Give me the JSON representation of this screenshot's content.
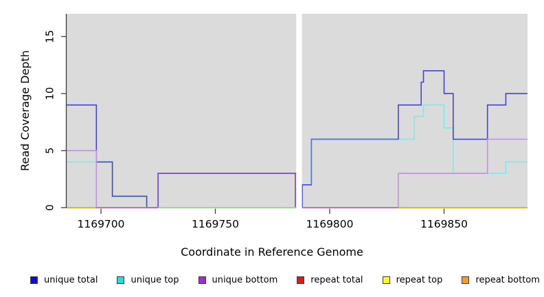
{
  "chart_data": {
    "type": "line",
    "subtype": "step-coverage",
    "title": "",
    "xlabel": "Coordinate in Reference Genome",
    "ylabel": "Read Coverage Depth",
    "x_domain": [
      1169685,
      1169886.5
    ],
    "y_domain": [
      0,
      17
    ],
    "x_ticks": [
      1169700,
      1169750,
      1169800,
      1169850
    ],
    "y_ticks": [
      0,
      5,
      10,
      15
    ],
    "grid": false,
    "plot_bg": "#DBDBDB",
    "axis_color": "#3c3c3c",
    "no_data_gap": {
      "from": 1169785.4,
      "to": 1169787.9
    },
    "draw_order": [
      3,
      4,
      5,
      1,
      0,
      2
    ],
    "series": [
      {
        "name": "unique total",
        "line_color": "#4343D8",
        "swatch": "#0A0AEF",
        "steps": [
          [
            1169685,
            9
          ],
          [
            1169698,
            4
          ],
          [
            1169705,
            1
          ],
          [
            1169720,
            0
          ],
          [
            1169725,
            3
          ],
          [
            1169786,
            0
          ],
          [
            1169788,
            2
          ],
          [
            1169792,
            6
          ],
          [
            1169830,
            9
          ],
          [
            1169840,
            11
          ],
          [
            1169841,
            12
          ],
          [
            1169850,
            10
          ],
          [
            1169854,
            6
          ],
          [
            1169869,
            9
          ],
          [
            1169877,
            10
          ]
        ]
      },
      {
        "name": "unique top",
        "line_color": "#80E8E8",
        "swatch": "#06E9E9",
        "steps": [
          [
            1169685,
            4
          ],
          [
            1169705,
            1
          ],
          [
            1169720,
            0
          ],
          [
            1169788,
            2
          ],
          [
            1169792,
            6
          ],
          [
            1169837,
            8
          ],
          [
            1169841,
            9
          ],
          [
            1169850,
            7
          ],
          [
            1169854,
            3
          ],
          [
            1169877,
            4
          ]
        ]
      },
      {
        "name": "unique bottom",
        "line_color": "#C08FE5",
        "swatch": "#9C2CDE",
        "steps": [
          [
            1169685,
            5
          ],
          [
            1169698,
            0
          ],
          [
            1169725,
            3
          ],
          [
            1169785,
            0
          ],
          [
            1169830,
            3
          ],
          [
            1169869,
            6
          ]
        ]
      },
      {
        "name": "repeat total",
        "line_color": "#D55F90",
        "swatch": "#EC1313",
        "steps": [
          [
            1169685,
            0
          ]
        ]
      },
      {
        "name": "repeat top",
        "line_color": "#EFEF30",
        "swatch": "#FBFB20",
        "steps": [
          [
            1169685,
            0
          ]
        ]
      },
      {
        "name": "repeat bottom",
        "line_color": "#FFA030",
        "swatch": "#FC9E13",
        "steps": [
          [
            1169685,
            0
          ]
        ]
      }
    ],
    "zero_line_segments": [
      {
        "from": 1169685,
        "to": 1169698,
        "color": "#FFA030"
      },
      {
        "from": 1169698,
        "to": 1169725,
        "color": "#D55F90"
      },
      {
        "from": 1169725,
        "to": 1169785.4,
        "color": "#9ED69B"
      },
      {
        "from": 1169788,
        "to": 1169830,
        "color": "#D55F90"
      },
      {
        "from": 1169830,
        "to": 1169886.5,
        "color": "#FFA030"
      }
    ],
    "overlap_segments": [
      {
        "from": 1169725,
        "to": 1169785,
        "value": 3,
        "color": "#6F4BE0",
        "drop_left": 0,
        "drop_right": 0
      },
      {
        "from": 1169792,
        "to": 1169830,
        "value": 6,
        "color": "#4E74E5",
        "drop_left": 2,
        "drop_right": null
      }
    ],
    "legend": {
      "position": "bottom",
      "items": [
        {
          "label": "unique total",
          "swatch": "#0A0AEF"
        },
        {
          "label": "unique top",
          "swatch": "#06E9E9"
        },
        {
          "label": "unique bottom",
          "swatch": "#9C2CDE"
        },
        {
          "label": "repeat total",
          "swatch": "#EC1313"
        },
        {
          "label": "repeat top",
          "swatch": "#FBFB20"
        },
        {
          "label": "repeat bottom",
          "swatch": "#FC9E13"
        }
      ]
    }
  }
}
